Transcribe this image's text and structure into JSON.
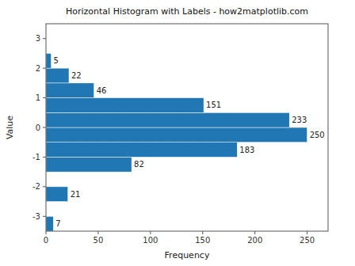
{
  "chart_data": {
    "type": "histogram",
    "title": "Horizontal Histogram with Labels - how2matplotlib.com",
    "xlabel": "Frequency",
    "ylabel": "Value",
    "bins": [
      -3.5,
      -3.0,
      -2.5,
      -2.0,
      -1.5,
      -1.0,
      -0.5,
      0.0,
      0.5,
      1.0,
      1.5,
      2.0,
      2.5,
      3.0,
      3.5
    ],
    "values": [
      7,
      0,
      21,
      0,
      82,
      183,
      250,
      233,
      151,
      46,
      22,
      5,
      0,
      0
    ],
    "color": "#2077b4",
    "orientation": "horizontal",
    "xlim": [
      0,
      270
    ],
    "xticks": [
      0,
      50,
      100,
      150,
      200,
      250
    ],
    "ylim": [
      -3.5,
      3.5
    ],
    "yticks": [
      -3,
      -2,
      -1,
      0,
      1,
      2,
      3
    ],
    "data_labels": true,
    "grid": false
  }
}
